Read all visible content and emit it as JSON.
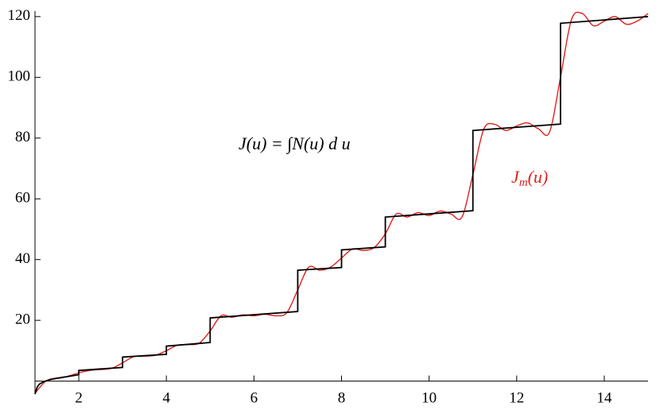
{
  "chart_data": {
    "type": "line",
    "xlim": [
      1,
      15
    ],
    "ylim": [
      -4.3,
      121.8
    ],
    "xticks": [
      2,
      4,
      6,
      8,
      10,
      12,
      14
    ],
    "yticks": [
      20,
      40,
      60,
      80,
      100,
      120
    ],
    "annotations": [
      {
        "parts": [
          "J(u) = ∫N(u) d u"
        ],
        "color": "#000000"
      },
      {
        "parts": [
          "J",
          "m",
          "(u)"
        ],
        "color": "#e0201c"
      }
    ],
    "series": [
      {
        "color": "#e0201c",
        "x": [
          1,
          1.25,
          1.5,
          1.75,
          2,
          2.25,
          2.5,
          2.75,
          3,
          3.25,
          3.5,
          3.75,
          4,
          4.25,
          4.5,
          4.75,
          5,
          5.25,
          5.5,
          5.75,
          6,
          6.25,
          6.5,
          6.75,
          7,
          7.25,
          7.5,
          7.75,
          8,
          8.25,
          8.5,
          8.75,
          9,
          9.25,
          9.5,
          9.75,
          10,
          10.25,
          10.5,
          10.75,
          11,
          11.25,
          11.5,
          11.75,
          12,
          12.25,
          12.5,
          12.75,
          13,
          13.25,
          13.5,
          13.75,
          14,
          14.25,
          14.5,
          14.75,
          15
        ],
        "values": [
          -4,
          0,
          1,
          1.6,
          2.7,
          3.5,
          3.8,
          4.2,
          6,
          8,
          8.2,
          8.5,
          10,
          11.8,
          12,
          12.5,
          16.5,
          21.5,
          21,
          21.8,
          21.5,
          22,
          21.5,
          22.5,
          30,
          37.5,
          36.5,
          37.5,
          40.5,
          43.5,
          43,
          44,
          48.5,
          55,
          54,
          55.5,
          54.5,
          56,
          55,
          54,
          68,
          83,
          84.5,
          82.5,
          84,
          85,
          83,
          82,
          100,
          119,
          121,
          117,
          118.5,
          120,
          117.5,
          118.5,
          121
        ]
      },
      {
        "color": "#000000",
        "x": [
          1,
          1.05,
          1.1,
          1.2,
          1.35,
          1.5,
          1.75,
          2,
          2,
          3,
          3,
          4,
          4,
          5,
          5,
          7,
          7,
          8,
          8,
          9,
          9,
          11,
          11,
          13,
          13,
          15
        ],
        "values": [
          -4.3,
          -2,
          -1,
          -0.2,
          0.5,
          0.9,
          1.5,
          2.1,
          3.5,
          4.5,
          7.9,
          8.8,
          11.5,
          12.7,
          20.8,
          22.9,
          36.5,
          37.4,
          43.2,
          44.2,
          54,
          56.1,
          82.5,
          84.6,
          117.8,
          120
        ]
      }
    ]
  }
}
